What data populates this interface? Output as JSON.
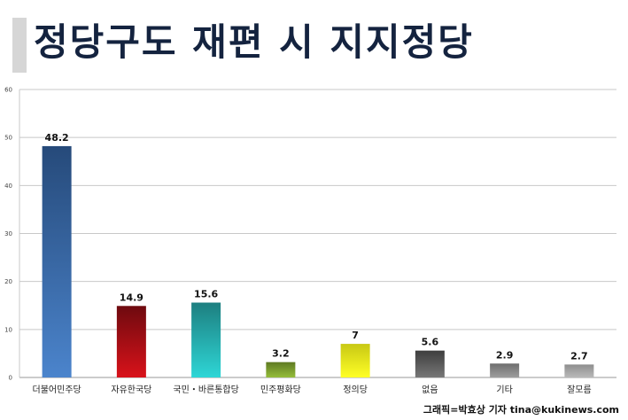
{
  "header": {
    "title": "정당구도 재편 시 지지정당"
  },
  "credit": "그래픽=박효상 기자 tina@kukinews.com",
  "chart_data": {
    "type": "bar",
    "categories": [
      "더불어민주당",
      "자유한국당",
      "국민・바른통합당",
      "민주평화당",
      "정의당",
      "없음",
      "기타",
      "잘모름"
    ],
    "values": [
      48.2,
      14.9,
      15.6,
      3.2,
      7,
      5.6,
      2.9,
      2.7
    ],
    "value_labels": [
      "48.2",
      "14.9",
      "15.6",
      "3.2",
      "7",
      "5.6",
      "2.9",
      "2.7"
    ],
    "ylim": [
      0,
      60
    ],
    "yticks": [
      0,
      10,
      20,
      30,
      40,
      50,
      60
    ],
    "grid": true,
    "legend": "none",
    "bar_colors": [
      [
        "#264a7a",
        "#4b84cc"
      ],
      [
        "#6e0a0f",
        "#d9121a"
      ],
      [
        "#1d7f80",
        "#2ed6d6"
      ],
      [
        "#5e7a22",
        "#95bd3a"
      ],
      [
        "#c8c814",
        "#ffff26"
      ],
      [
        "#3e3e3e",
        "#777777"
      ],
      [
        "#6e6e6e",
        "#9e9e9e"
      ],
      [
        "#8e8e8e",
        "#b9b9b9"
      ]
    ]
  }
}
